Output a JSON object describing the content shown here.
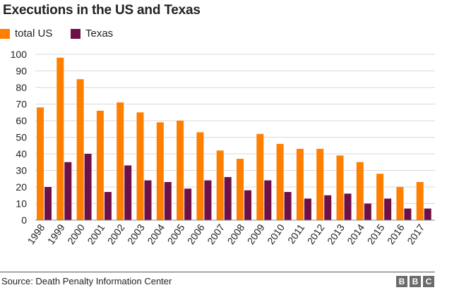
{
  "title": "Executions in the US and Texas",
  "colors": {
    "total_us": "#FF8000",
    "texas": "#6E0F48",
    "grid": "#d9d9d9",
    "axis": "#888888"
  },
  "chart_data": {
    "type": "bar",
    "categories": [
      "1998",
      "1999",
      "2000",
      "2001",
      "2002",
      "2003",
      "2004",
      "2005",
      "2006",
      "2007",
      "2008",
      "2009",
      "2010",
      "2011",
      "2012",
      "2013",
      "2014",
      "2015",
      "2016",
      "2017"
    ],
    "series": [
      {
        "name": "total US",
        "values": [
          68,
          98,
          85,
          66,
          71,
          65,
          59,
          60,
          53,
          42,
          37,
          52,
          46,
          43,
          43,
          39,
          35,
          28,
          20,
          23
        ]
      },
      {
        "name": "Texas",
        "values": [
          20,
          35,
          40,
          17,
          33,
          24,
          23,
          19,
          24,
          26,
          18,
          24,
          17,
          13,
          15,
          16,
          10,
          13,
          7,
          7
        ]
      }
    ],
    "yticks": [
      "0",
      "10",
      "20",
      "30",
      "40",
      "50",
      "60",
      "70",
      "80",
      "90",
      "100"
    ],
    "ylim": [
      0,
      100
    ],
    "grid": true,
    "legend": "top-left"
  },
  "footer": {
    "source": "Source: Death Penalty Information Center",
    "logo": [
      "B",
      "B",
      "C"
    ]
  }
}
